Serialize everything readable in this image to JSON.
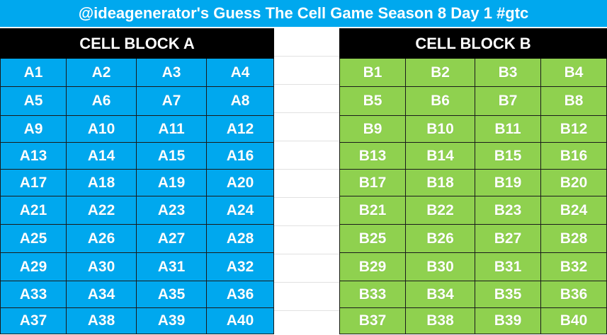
{
  "title": "@ideagenerator's Guess The Cell Game Season 8 Day 1 #gtc",
  "colors": {
    "title_bg": "#00a8ee",
    "header_bg": "#000000",
    "block_a": "#00a8ee",
    "block_b": "#8fd14f",
    "text": "#ffffff"
  },
  "block_a": {
    "header": "CELL BLOCK A",
    "cells": [
      "A1",
      "A2",
      "A3",
      "A4",
      "A5",
      "A6",
      "A7",
      "A8",
      "A9",
      "A10",
      "A11",
      "A12",
      "A13",
      "A14",
      "A15",
      "A16",
      "A17",
      "A18",
      "A19",
      "A20",
      "A21",
      "A22",
      "A23",
      "A24",
      "A25",
      "A26",
      "A27",
      "A28",
      "A29",
      "A30",
      "A31",
      "A32",
      "A33",
      "A34",
      "A35",
      "A36",
      "A37",
      "A38",
      "A39",
      "A40"
    ]
  },
  "block_b": {
    "header": "CELL BLOCK B",
    "cells": [
      "B1",
      "B2",
      "B3",
      "B4",
      "B5",
      "B6",
      "B7",
      "B8",
      "B9",
      "B10",
      "B11",
      "B12",
      "B13",
      "B14",
      "B15",
      "B16",
      "B17",
      "B18",
      "B19",
      "B20",
      "B21",
      "B22",
      "B23",
      "B24",
      "B25",
      "B26",
      "B27",
      "B28",
      "B29",
      "B30",
      "B31",
      "B32",
      "B33",
      "B34",
      "B35",
      "B36",
      "B37",
      "B38",
      "B39",
      "B40"
    ]
  }
}
